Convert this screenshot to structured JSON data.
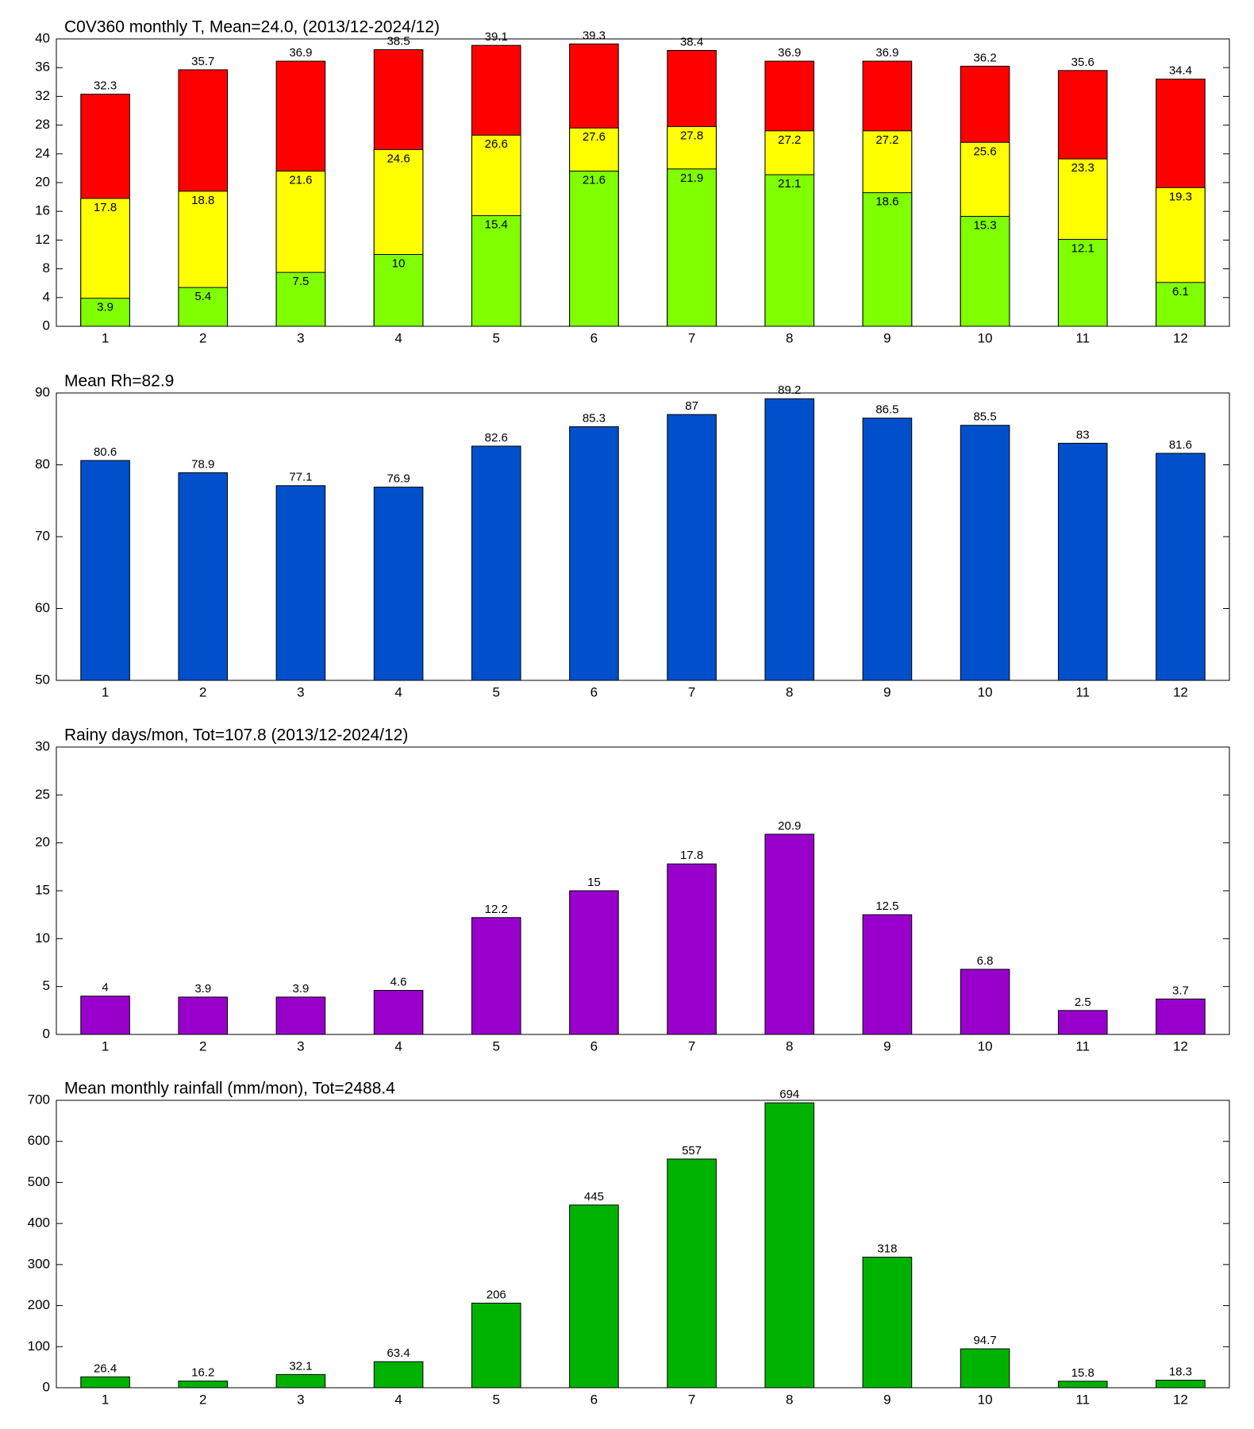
{
  "chart_data": [
    {
      "type": "overlap-bar",
      "title": "C0V360 monthly T, Mean=24.0, (2013/12-2024/12)",
      "categories": [
        "1",
        "2",
        "3",
        "4",
        "5",
        "6",
        "7",
        "8",
        "9",
        "10",
        "11",
        "12"
      ],
      "series": [
        {
          "color": "#ff0000",
          "values": [
            32.3,
            35.7,
            36.9,
            38.5,
            39.1,
            39.3,
            38.4,
            36.9,
            36.9,
            36.2,
            35.6,
            34.4
          ]
        },
        {
          "color": "#ffff00",
          "values": [
            17.8,
            18.8,
            21.6,
            24.6,
            26.6,
            27.6,
            27.8,
            27.2,
            27.2,
            25.6,
            23.3,
            19.3
          ]
        },
        {
          "color": "#80ff00",
          "values": [
            3.9,
            5.4,
            7.5,
            10,
            15.4,
            21.6,
            21.9,
            21.1,
            18.6,
            15.3,
            12.1,
            6.1
          ]
        }
      ],
      "ylim": [
        0,
        40
      ],
      "yticks": [
        0,
        4,
        8,
        12,
        16,
        20,
        24,
        28,
        32,
        36,
        40
      ]
    },
    {
      "type": "bar",
      "title": "Mean Rh=82.9",
      "categories": [
        "1",
        "2",
        "3",
        "4",
        "5",
        "6",
        "7",
        "8",
        "9",
        "10",
        "11",
        "12"
      ],
      "series": [
        {
          "color": "#0050cc",
          "values": [
            80.6,
            78.9,
            77.1,
            76.9,
            82.6,
            85.3,
            87,
            89.2,
            86.5,
            85.5,
            83,
            81.6
          ]
        }
      ],
      "ylim": [
        50,
        90
      ],
      "yticks": [
        50,
        60,
        70,
        80,
        90
      ]
    },
    {
      "type": "bar",
      "title": "Rainy days/mon, Tot=107.8 (2013/12-2024/12)",
      "categories": [
        "1",
        "2",
        "3",
        "4",
        "5",
        "6",
        "7",
        "8",
        "9",
        "10",
        "11",
        "12"
      ],
      "series": [
        {
          "color": "#9900cc",
          "values": [
            4,
            3.9,
            3.9,
            4.6,
            12.2,
            15,
            17.8,
            20.9,
            12.5,
            6.8,
            2.5,
            3.7
          ]
        }
      ],
      "ylim": [
        0,
        30
      ],
      "yticks": [
        0,
        5,
        10,
        15,
        20,
        25,
        30
      ]
    },
    {
      "type": "bar",
      "title": "Mean monthly rainfall (mm/mon), Tot=2488.4",
      "categories": [
        "1",
        "2",
        "3",
        "4",
        "5",
        "6",
        "7",
        "8",
        "9",
        "10",
        "11",
        "12"
      ],
      "series": [
        {
          "color": "#00b300",
          "values": [
            26.4,
            16.2,
            32.1,
            63.4,
            206,
            445,
            557,
            694,
            318,
            94.7,
            15.8,
            18.3
          ]
        }
      ],
      "ylim": [
        0,
        700
      ],
      "yticks": [
        0,
        100,
        200,
        300,
        400,
        500,
        600,
        700
      ]
    }
  ]
}
